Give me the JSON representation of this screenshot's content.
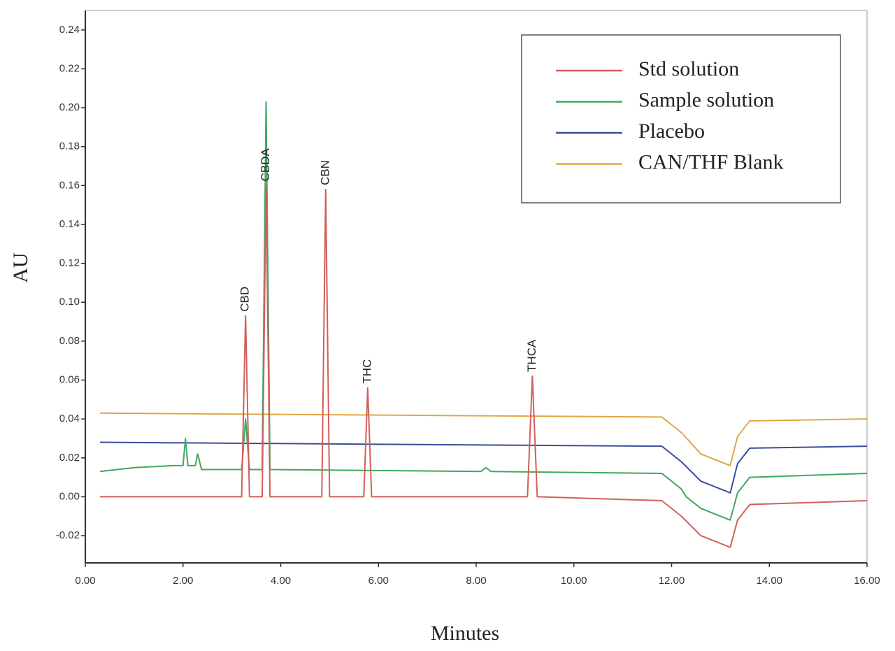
{
  "chart_data": {
    "type": "line",
    "x_label": "Minutes",
    "y_label": "AU",
    "xlim": [
      0,
      16
    ],
    "ylim": [
      -0.034,
      0.25
    ],
    "xticks": [
      {
        "value": 0,
        "label": "0.00"
      },
      {
        "value": 2,
        "label": "2.00"
      },
      {
        "value": 4,
        "label": "4.00"
      },
      {
        "value": 6,
        "label": "6.00"
      },
      {
        "value": 8,
        "label": "8.00"
      },
      {
        "value": 10,
        "label": "10.00"
      },
      {
        "value": 12,
        "label": "12.00"
      },
      {
        "value": 14,
        "label": "14.00"
      },
      {
        "value": 16,
        "label": "16.00"
      }
    ],
    "yticks": [
      {
        "value": -0.02,
        "label": "-0.02"
      },
      {
        "value": 0,
        "label": "0.00"
      },
      {
        "value": 0.02,
        "label": "0.02"
      },
      {
        "value": 0.04,
        "label": "0.04"
      },
      {
        "value": 0.06,
        "label": "0.06"
      },
      {
        "value": 0.08,
        "label": "0.08"
      },
      {
        "value": 0.1,
        "label": "0.10"
      },
      {
        "value": 0.12,
        "label": "0.12"
      },
      {
        "value": 0.14,
        "label": "0.14"
      },
      {
        "value": 0.16,
        "label": "0.16"
      },
      {
        "value": 0.18,
        "label": "0.18"
      },
      {
        "value": 0.2,
        "label": "0.20"
      },
      {
        "value": 0.22,
        "label": "0.22"
      },
      {
        "value": 0.24,
        "label": "0.24"
      }
    ],
    "legend": "upper right",
    "series": [
      {
        "name": "Std solution",
        "color": "#d0605a",
        "x": [
          0.3,
          3.2,
          3.28,
          3.36,
          3.62,
          3.7,
          3.78,
          4.84,
          4.92,
          5.0,
          5.7,
          5.78,
          5.86,
          9.05,
          9.15,
          9.25,
          11.8,
          12.2,
          12.6,
          13.2,
          13.35,
          13.6,
          16
        ],
        "values": [
          0,
          0,
          0.093,
          0,
          0,
          0.16,
          0,
          0,
          0.158,
          0,
          0,
          0.056,
          0,
          0,
          0.062,
          0,
          -0.002,
          -0.01,
          -0.02,
          -0.026,
          -0.012,
          -0.004,
          -0.002
        ]
      },
      {
        "name": "Sample solution",
        "color": "#3fa860",
        "x": [
          0.3,
          1.0,
          1.8,
          2.0,
          2.05,
          2.1,
          2.25,
          2.3,
          2.38,
          3.2,
          3.28,
          3.36,
          3.62,
          3.7,
          3.78,
          8.1,
          8.2,
          8.3,
          11.8,
          12.2,
          12.3,
          12.6,
          13.2,
          13.35,
          13.6,
          16
        ],
        "values": [
          0.013,
          0.015,
          0.016,
          0.016,
          0.03,
          0.016,
          0.016,
          0.022,
          0.014,
          0.014,
          0.04,
          0.014,
          0.014,
          0.203,
          0.014,
          0.013,
          0.015,
          0.013,
          0.012,
          0.004,
          0.0,
          -0.006,
          -0.012,
          0.002,
          0.01,
          0.012
        ]
      },
      {
        "name": "Placebo",
        "color": "#3b4d9a",
        "x": [
          0.3,
          11.8,
          12.2,
          12.6,
          13.2,
          13.35,
          13.6,
          16
        ],
        "values": [
          0.028,
          0.026,
          0.018,
          0.008,
          0.002,
          0.017,
          0.025,
          0.026
        ]
      },
      {
        "name": "CAN/THF Blank",
        "color": "#e0a840",
        "x": [
          0.3,
          11.8,
          12.2,
          12.6,
          13.2,
          13.35,
          13.6,
          16
        ],
        "values": [
          0.043,
          0.041,
          0.033,
          0.022,
          0.016,
          0.031,
          0.039,
          0.04
        ]
      }
    ],
    "annotations": [
      {
        "text": "CBD",
        "x": 3.28,
        "y": 0.093
      },
      {
        "text": "CBDA",
        "x": 3.7,
        "y": 0.16
      },
      {
        "text": "CBN",
        "x": 4.92,
        "y": 0.158
      },
      {
        "text": "THC",
        "x": 5.78,
        "y": 0.056
      },
      {
        "text": "THCA",
        "x": 9.15,
        "y": 0.062
      }
    ]
  }
}
